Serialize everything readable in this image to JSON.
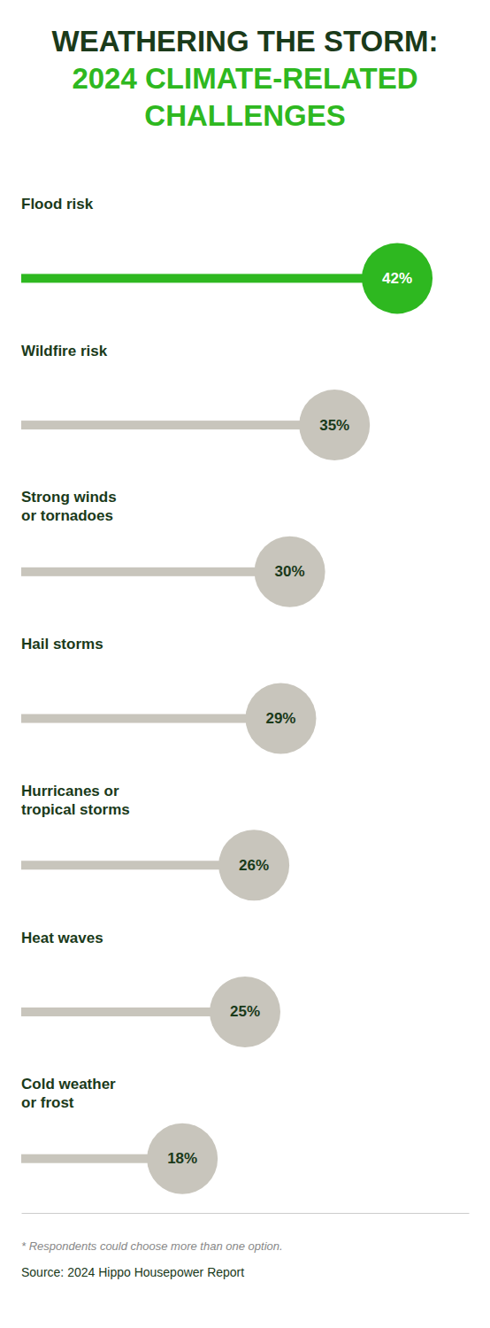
{
  "chart_data": {
    "type": "lollipop",
    "title": "WEATHERING THE STORM: 2024 CLIMATE-RELATED CHALLENGES",
    "categories": [
      "Flood risk",
      "Wildfire risk",
      "Strong winds\nor tornadoes",
      "Hail storms",
      "Hurricanes or\ntropical storms",
      "Heat waves",
      "Cold weather\nor frost"
    ],
    "values": [
      42,
      35,
      30,
      29,
      26,
      25,
      18
    ],
    "value_labels": [
      "42%",
      "35%",
      "30%",
      "29%",
      "26%",
      "25%",
      "18%"
    ],
    "colors": [
      "#2eb820",
      "#c8c5bc",
      "#c8c5bc",
      "#c8c5bc",
      "#c8c5bc",
      "#c8c5bc",
      "#c8c5bc"
    ],
    "orientation": "horizontal",
    "xlim": [
      0,
      50
    ],
    "data_labels": true,
    "tick_labels": false,
    "grid": false,
    "annotations": [
      "* Respondents could choose more than one option.",
      "Source: 2024 Hippo Housepower Report"
    ]
  }
}
